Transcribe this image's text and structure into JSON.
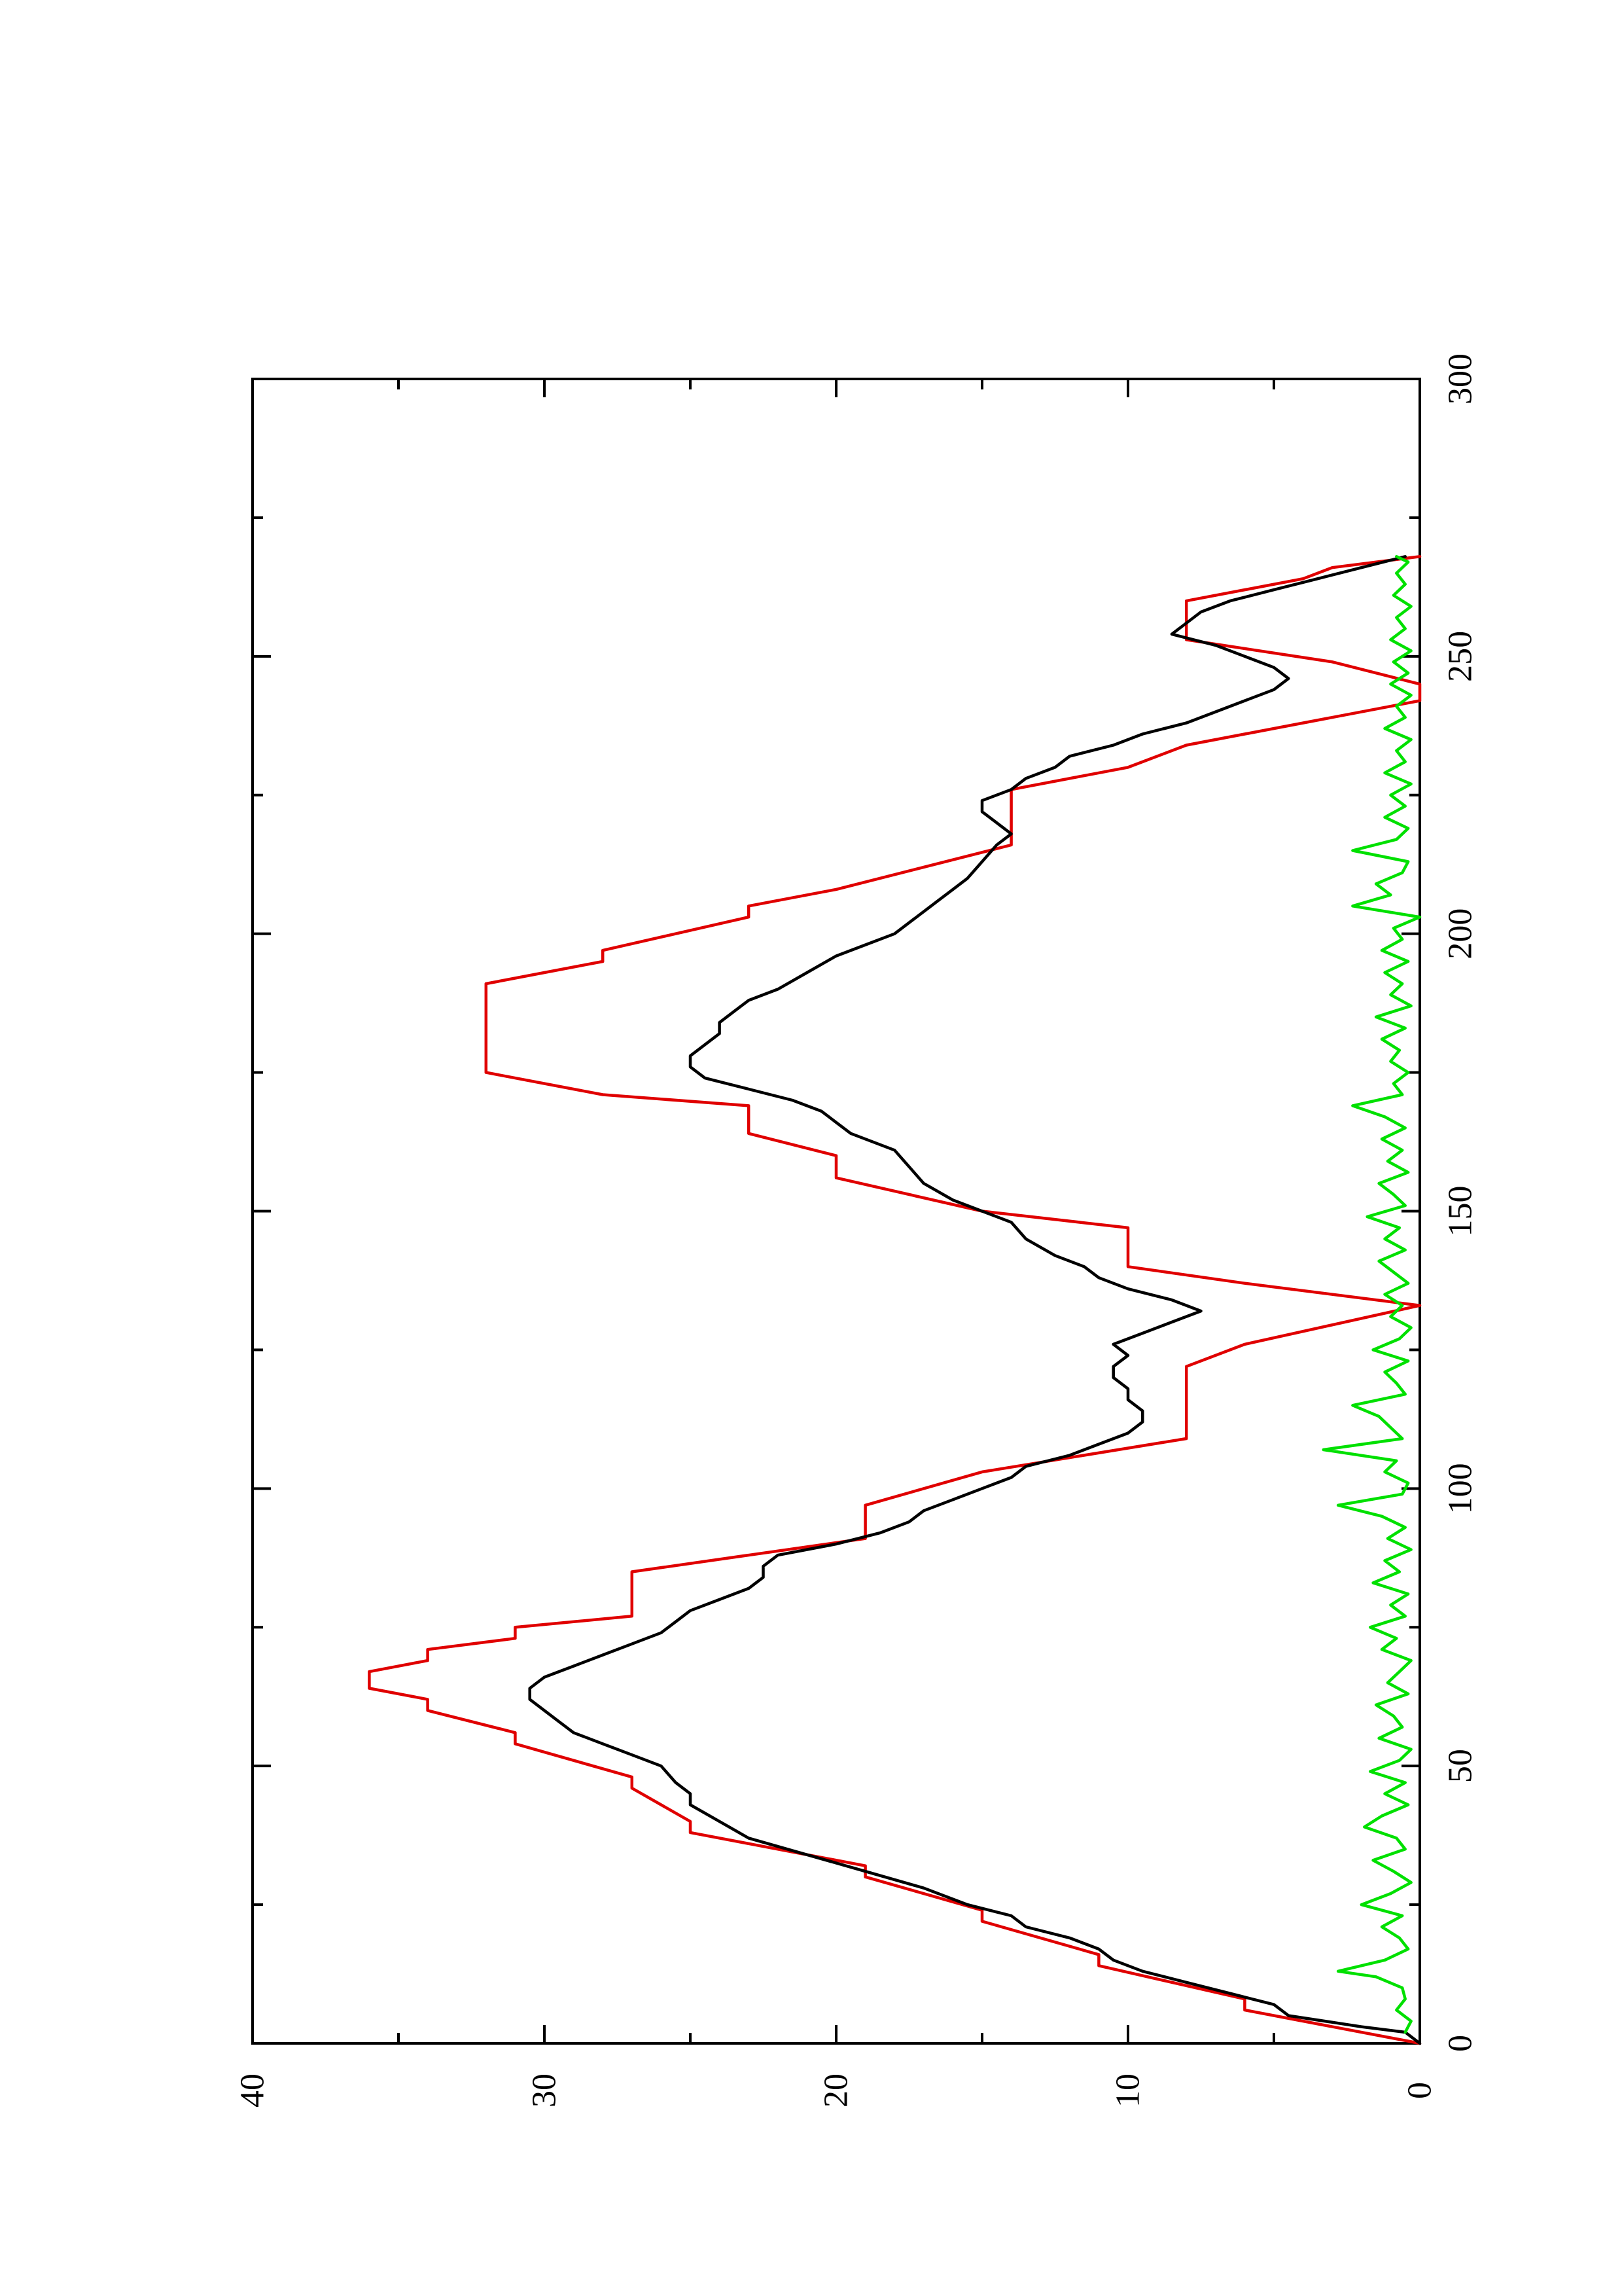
{
  "chart_data": {
    "type": "line",
    "orientation": "rotated 90 degrees counter-clockwise (page in landscape)",
    "title": "",
    "xlabel": "",
    "ylabel": "",
    "xlim": [
      0,
      300
    ],
    "ylim": [
      0,
      40
    ],
    "x_ticks": [
      0,
      50,
      100,
      150,
      200,
      250,
      300
    ],
    "x_tick_labels": [
      "0",
      "50",
      "100",
      "150",
      "200",
      "250",
      "300"
    ],
    "y_ticks": [
      0,
      10,
      20,
      30,
      40
    ],
    "y_tick_labels": [
      "0",
      "10",
      "20",
      "30",
      "40"
    ],
    "grid": false,
    "series": [
      {
        "color": "#e00000",
        "values": [
          [
            0,
            0
          ],
          [
            6,
            6
          ],
          [
            8,
            6
          ],
          [
            14,
            11
          ],
          [
            16,
            11
          ],
          [
            22,
            15
          ],
          [
            24,
            15
          ],
          [
            30,
            19
          ],
          [
            32,
            19
          ],
          [
            38,
            25
          ],
          [
            40,
            25
          ],
          [
            46,
            27
          ],
          [
            48,
            27
          ],
          [
            54,
            31
          ],
          [
            56,
            31
          ],
          [
            60,
            34
          ],
          [
            62,
            34
          ],
          [
            64,
            36
          ],
          [
            67,
            36
          ],
          [
            69,
            34
          ],
          [
            71,
            34
          ],
          [
            73,
            31
          ],
          [
            75,
            31
          ],
          [
            77,
            27
          ],
          [
            85,
            27
          ],
          [
            91,
            19
          ],
          [
            97,
            19
          ],
          [
            103,
            15
          ],
          [
            109,
            8
          ],
          [
            122,
            8
          ],
          [
            126,
            6
          ],
          [
            133,
            0
          ],
          [
            137,
            6
          ],
          [
            140,
            10
          ],
          [
            147,
            10
          ],
          [
            150,
            15
          ],
          [
            156,
            20
          ],
          [
            160,
            20
          ],
          [
            164,
            23
          ],
          [
            169,
            23
          ],
          [
            171,
            28
          ],
          [
            175,
            32
          ],
          [
            191,
            32
          ],
          [
            195,
            28
          ],
          [
            197,
            28
          ],
          [
            203,
            23
          ],
          [
            205,
            23
          ],
          [
            208,
            20
          ],
          [
            212,
            17
          ],
          [
            216,
            14
          ],
          [
            226,
            14
          ],
          [
            230,
            10
          ],
          [
            234,
            8
          ],
          [
            242,
            0
          ],
          [
            245,
            0
          ],
          [
            249,
            3
          ],
          [
            253,
            8
          ],
          [
            260,
            8
          ],
          [
            264,
            4
          ],
          [
            266,
            3
          ],
          [
            268,
            0
          ]
        ]
      },
      {
        "color": "#000000",
        "values": [
          [
            0,
            0
          ],
          [
            2,
            0.5
          ],
          [
            3,
            2
          ],
          [
            5,
            4.5
          ],
          [
            7,
            5
          ],
          [
            9,
            6.5
          ],
          [
            11,
            8
          ],
          [
            13,
            9.5
          ],
          [
            15,
            10.5
          ],
          [
            17,
            11
          ],
          [
            19,
            12
          ],
          [
            21,
            13.5
          ],
          [
            23,
            14
          ],
          [
            25,
            15.5
          ],
          [
            28,
            17
          ],
          [
            31,
            19
          ],
          [
            34,
            21
          ],
          [
            37,
            23
          ],
          [
            40,
            24
          ],
          [
            43,
            25
          ],
          [
            45,
            25
          ],
          [
            47,
            25.5
          ],
          [
            50,
            26
          ],
          [
            52,
            27
          ],
          [
            54,
            28
          ],
          [
            56,
            29
          ],
          [
            58,
            29.5
          ],
          [
            60,
            30
          ],
          [
            62,
            30.5
          ],
          [
            64,
            30.5
          ],
          [
            66,
            30
          ],
          [
            68,
            29
          ],
          [
            70,
            28
          ],
          [
            72,
            27
          ],
          [
            74,
            26
          ],
          [
            76,
            25.5
          ],
          [
            78,
            25
          ],
          [
            80,
            24
          ],
          [
            82,
            23
          ],
          [
            84,
            22.5
          ],
          [
            86,
            22.5
          ],
          [
            88,
            22
          ],
          [
            90,
            20
          ],
          [
            92,
            18.5
          ],
          [
            94,
            17.5
          ],
          [
            96,
            17
          ],
          [
            98,
            16
          ],
          [
            100,
            15
          ],
          [
            102,
            14
          ],
          [
            104,
            13.5
          ],
          [
            106,
            12
          ],
          [
            108,
            11
          ],
          [
            110,
            10
          ],
          [
            112,
            9.5
          ],
          [
            114,
            9.5
          ],
          [
            116,
            10
          ],
          [
            118,
            10
          ],
          [
            120,
            10.5
          ],
          [
            122,
            10.5
          ],
          [
            124,
            10
          ],
          [
            126,
            10.5
          ],
          [
            128,
            9.5
          ],
          [
            130,
            8.5
          ],
          [
            132,
            7.5
          ],
          [
            134,
            8.5
          ],
          [
            136,
            10
          ],
          [
            138,
            11
          ],
          [
            140,
            11.5
          ],
          [
            142,
            12.5
          ],
          [
            145,
            13.5
          ],
          [
            148,
            14
          ],
          [
            150,
            15
          ],
          [
            152,
            16
          ],
          [
            155,
            17
          ],
          [
            158,
            17.5
          ],
          [
            161,
            18
          ],
          [
            164,
            19.5
          ],
          [
            166,
            20
          ],
          [
            168,
            20.5
          ],
          [
            170,
            21.5
          ],
          [
            172,
            23
          ],
          [
            174,
            24.5
          ],
          [
            176,
            25
          ],
          [
            178,
            25
          ],
          [
            180,
            24.5
          ],
          [
            182,
            24
          ],
          [
            184,
            24
          ],
          [
            186,
            23.5
          ],
          [
            188,
            23
          ],
          [
            190,
            22
          ],
          [
            193,
            21
          ],
          [
            196,
            20
          ],
          [
            198,
            19
          ],
          [
            200,
            18
          ],
          [
            202,
            17.5
          ],
          [
            204,
            17
          ],
          [
            206,
            16.5
          ],
          [
            208,
            16
          ],
          [
            210,
            15.5
          ],
          [
            213,
            15
          ],
          [
            216,
            14.5
          ],
          [
            218,
            14
          ],
          [
            220,
            14.5
          ],
          [
            222,
            15
          ],
          [
            224,
            15
          ],
          [
            226,
            14
          ],
          [
            228,
            13.5
          ],
          [
            230,
            12.5
          ],
          [
            232,
            12
          ],
          [
            234,
            10.5
          ],
          [
            236,
            9.5
          ],
          [
            238,
            8
          ],
          [
            240,
            7
          ],
          [
            242,
            6
          ],
          [
            244,
            5
          ],
          [
            246,
            4.5
          ],
          [
            248,
            5
          ],
          [
            250,
            6
          ],
          [
            252,
            7
          ],
          [
            254,
            8.5
          ],
          [
            256,
            8
          ],
          [
            258,
            7.5
          ],
          [
            260,
            6.5
          ],
          [
            262,
            5
          ],
          [
            264,
            3.5
          ],
          [
            266,
            2
          ],
          [
            268,
            0.5
          ]
        ]
      },
      {
        "color": "#00e000",
        "values": [
          [
            2,
            0.5
          ],
          [
            4,
            0.3
          ],
          [
            6,
            0.8
          ],
          [
            8,
            0.5
          ],
          [
            10,
            0.6
          ],
          [
            12,
            1.5
          ],
          [
            13,
            2.8
          ],
          [
            15,
            1.2
          ],
          [
            17,
            0.4
          ],
          [
            19,
            0.7
          ],
          [
            21,
            1.3
          ],
          [
            23,
            0.6
          ],
          [
            25,
            2.0
          ],
          [
            27,
            1.0
          ],
          [
            29,
            0.3
          ],
          [
            31,
            0.9
          ],
          [
            33,
            1.6
          ],
          [
            35,
            0.5
          ],
          [
            37,
            0.8
          ],
          [
            39,
            1.9
          ],
          [
            41,
            1.3
          ],
          [
            43,
            0.4
          ],
          [
            45,
            1.2
          ],
          [
            47,
            0.5
          ],
          [
            49,
            1.7
          ],
          [
            51,
            0.7
          ],
          [
            53,
            0.3
          ],
          [
            55,
            1.4
          ],
          [
            57,
            0.6
          ],
          [
            59,
            0.9
          ],
          [
            61,
            1.5
          ],
          [
            63,
            0.4
          ],
          [
            65,
            1.1
          ],
          [
            67,
            0.7
          ],
          [
            69,
            0.3
          ],
          [
            71,
            1.3
          ],
          [
            73,
            0.8
          ],
          [
            75,
            1.7
          ],
          [
            77,
            0.5
          ],
          [
            79,
            1.0
          ],
          [
            81,
            0.4
          ],
          [
            83,
            1.6
          ],
          [
            85,
            0.7
          ],
          [
            87,
            1.2
          ],
          [
            89,
            0.3
          ],
          [
            91,
            1.1
          ],
          [
            93,
            0.5
          ],
          [
            95,
            1.3
          ],
          [
            97,
            2.8
          ],
          [
            99,
            0.6
          ],
          [
            101,
            0.4
          ],
          [
            103,
            1.2
          ],
          [
            105,
            0.8
          ],
          [
            107,
            3.3
          ],
          [
            109,
            0.6
          ],
          [
            111,
            1.0
          ],
          [
            113,
            1.4
          ],
          [
            115,
            2.3
          ],
          [
            117,
            0.5
          ],
          [
            119,
            0.8
          ],
          [
            121,
            1.2
          ],
          [
            123,
            0.4
          ],
          [
            125,
            1.6
          ],
          [
            127,
            0.7
          ],
          [
            129,
            0.3
          ],
          [
            131,
            1.0
          ],
          [
            133,
            0.6
          ],
          [
            135,
            1.2
          ],
          [
            137,
            0.4
          ],
          [
            139,
            0.9
          ],
          [
            141,
            1.4
          ],
          [
            143,
            0.5
          ],
          [
            145,
            1.2
          ],
          [
            147,
            0.7
          ],
          [
            149,
            1.8
          ],
          [
            151,
            0.5
          ],
          [
            153,
            0.9
          ],
          [
            155,
            1.4
          ],
          [
            157,
            0.4
          ],
          [
            159,
            1.1
          ],
          [
            161,
            0.6
          ],
          [
            163,
            1.3
          ],
          [
            165,
            0.5
          ],
          [
            167,
            1.2
          ],
          [
            169,
            2.3
          ],
          [
            171,
            0.6
          ],
          [
            173,
            0.9
          ],
          [
            175,
            0.4
          ],
          [
            177,
            1.0
          ],
          [
            179,
            0.7
          ],
          [
            181,
            1.3
          ],
          [
            183,
            0.5
          ],
          [
            185,
            1.5
          ],
          [
            187,
            0.3
          ],
          [
            189,
            1.0
          ],
          [
            191,
            0.6
          ],
          [
            193,
            1.2
          ],
          [
            195,
            0.4
          ],
          [
            197,
            1.3
          ],
          [
            199,
            0.6
          ],
          [
            201,
            0.9
          ],
          [
            203,
            0.0
          ],
          [
            205,
            2.3
          ],
          [
            207,
            1.0
          ],
          [
            209,
            1.5
          ],
          [
            211,
            0.6
          ],
          [
            213,
            0.4
          ],
          [
            215,
            2.3
          ],
          [
            217,
            0.8
          ],
          [
            219,
            0.4
          ],
          [
            221,
            1.2
          ],
          [
            223,
            0.5
          ],
          [
            225,
            1.0
          ],
          [
            227,
            0.3
          ],
          [
            229,
            1.2
          ],
          [
            231,
            0.5
          ],
          [
            233,
            0.8
          ],
          [
            235,
            0.3
          ],
          [
            237,
            1.2
          ],
          [
            239,
            0.5
          ],
          [
            241,
            0.8
          ],
          [
            243,
            0.3
          ],
          [
            245,
            1.0
          ],
          [
            247,
            0.4
          ],
          [
            249,
            0.9
          ],
          [
            251,
            0.3
          ],
          [
            253,
            1.0
          ],
          [
            255,
            0.5
          ],
          [
            257,
            0.8
          ],
          [
            259,
            0.3
          ],
          [
            261,
            0.9
          ],
          [
            263,
            0.5
          ],
          [
            265,
            0.8
          ],
          [
            267,
            0.4
          ],
          [
            268,
            0.8
          ]
        ]
      }
    ]
  }
}
